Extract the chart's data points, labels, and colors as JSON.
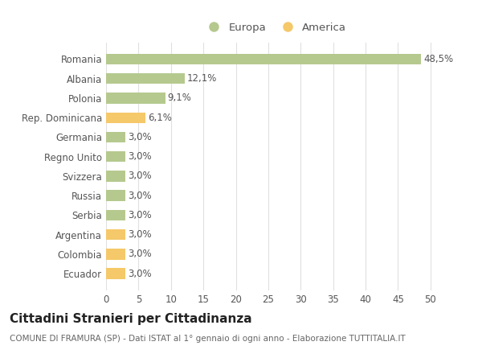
{
  "countries": [
    "Romania",
    "Albania",
    "Polonia",
    "Rep. Dominicana",
    "Germania",
    "Regno Unito",
    "Svizzera",
    "Russia",
    "Serbia",
    "Argentina",
    "Colombia",
    "Ecuador"
  ],
  "values": [
    48.5,
    12.1,
    9.1,
    6.1,
    3.0,
    3.0,
    3.0,
    3.0,
    3.0,
    3.0,
    3.0,
    3.0
  ],
  "labels": [
    "48,5%",
    "12,1%",
    "9,1%",
    "6,1%",
    "3,0%",
    "3,0%",
    "3,0%",
    "3,0%",
    "3,0%",
    "3,0%",
    "3,0%",
    "3,0%"
  ],
  "colors": [
    "#b5c98e",
    "#b5c98e",
    "#b5c98e",
    "#f5c869",
    "#b5c98e",
    "#b5c98e",
    "#b5c98e",
    "#b5c98e",
    "#b5c98e",
    "#f5c869",
    "#f5c869",
    "#f5c869"
  ],
  "europa_color": "#b5c98e",
  "america_color": "#f5c869",
  "xlim": [
    0,
    52
  ],
  "xticks": [
    0,
    5,
    10,
    15,
    20,
    25,
    30,
    35,
    40,
    45,
    50
  ],
  "title": "Cittadini Stranieri per Cittadinanza",
  "subtitle": "COMUNE DI FRAMURA (SP) - Dati ISTAT al 1° gennaio di ogni anno - Elaborazione TUTTITALIA.IT",
  "legend_europa": "Europa",
  "legend_america": "America",
  "bg_color": "#ffffff",
  "grid_color": "#e0e0e0",
  "bar_height": 0.55,
  "label_fontsize": 8.5,
  "ytick_fontsize": 8.5,
  "xtick_fontsize": 8.5,
  "title_fontsize": 11,
  "subtitle_fontsize": 7.5,
  "legend_fontsize": 9.5
}
